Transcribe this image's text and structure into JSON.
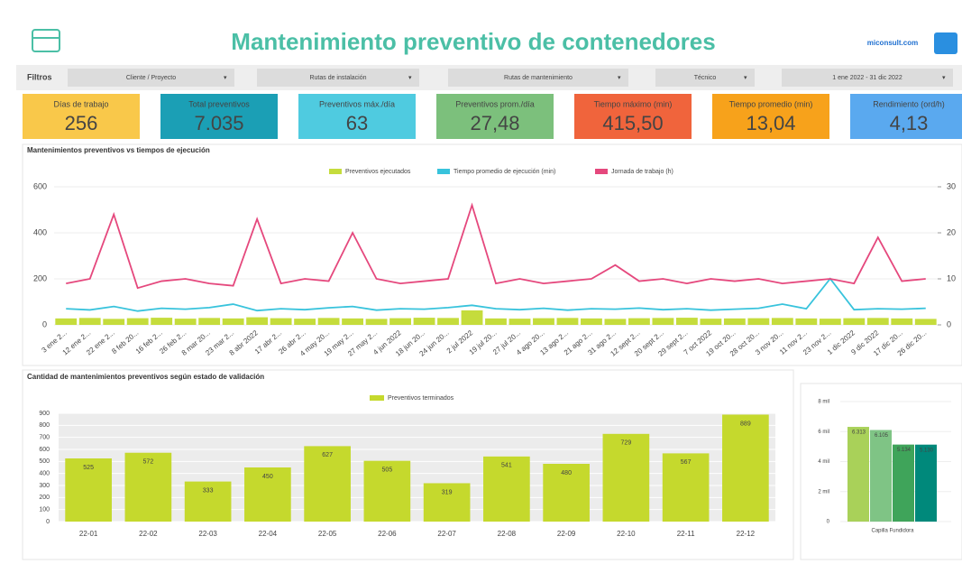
{
  "header": {
    "title": "Mantenimiento preventivo de contenedores",
    "brand": "miconsult.com"
  },
  "filters": {
    "label": "Filtros",
    "items": [
      "Cliente / Proyecto",
      "Rutas de instalación",
      "Rutas de mantenimiento",
      "Técnico",
      "1 ene 2022 - 31 dic 2022"
    ]
  },
  "kpis": [
    {
      "label": "Días de trabajo",
      "value": "256",
      "color": "#f9c84a"
    },
    {
      "label": "Total preventivos",
      "value": "7.035",
      "color": "#1b9fb5"
    },
    {
      "label": "Preventivos máx./día",
      "value": "63",
      "color": "#4fcbe0"
    },
    {
      "label": "Preventivos prom./día",
      "value": "27,48",
      "color": "#7cc07c"
    },
    {
      "label": "Tiempo máximo (min)",
      "value": "415,50",
      "color": "#f0643c"
    },
    {
      "label": "Tiempo promedio (min)",
      "value": "13,04",
      "color": "#f7a21b"
    },
    {
      "label": "Rendimiento (ord/h)",
      "value": "4,13",
      "color": "#5aa9ef"
    }
  ],
  "timeline_chart": {
    "type": "combo",
    "title": "Mantenimientos preventivos vs tiempos de ejecución",
    "categories": [
      "3 ene 2...",
      "12 ene 2...",
      "22 ene 2...",
      "8 feb 20...",
      "16 feb 2...",
      "26 feb 2...",
      "8 mar 20...",
      "23 mar 2...",
      "8 abr 2022",
      "17 abr 2...",
      "26 abr 2...",
      "4 may 20...",
      "19 may 2...",
      "27 may 2...",
      "4 jun 2022",
      "18 jun 20...",
      "24 jun 20...",
      "2 jul 2022",
      "19 jul 20...",
      "27 jul 20...",
      "4 ago 20...",
      "13 ago 2...",
      "21 ago 2...",
      "31 ago 2...",
      "12 sept 2...",
      "20 sept 2...",
      "29 sept 2...",
      "7 oct 2022",
      "19 oct 20...",
      "28 oct 20...",
      "3 nov 20...",
      "11 nov 2...",
      "23 nov 2...",
      "1 dic 2022",
      "9 dic 2022",
      "17 dic 20...",
      "26 dic 20..."
    ],
    "series": [
      {
        "name": "Preventivos ejecutados",
        "type": "bar",
        "color": "#c5dc3c",
        "values": [
          28,
          30,
          26,
          29,
          31,
          27,
          30,
          28,
          33,
          29,
          27,
          30,
          28,
          26,
          29,
          31,
          30,
          63,
          28,
          27,
          29,
          30,
          28,
          26,
          29,
          30,
          31,
          27,
          28,
          29,
          30,
          28,
          27,
          29,
          30,
          28,
          26
        ]
      },
      {
        "name": "Tiempo promedio de ejecución (min)",
        "type": "line",
        "color": "#38c3dc",
        "values": [
          70,
          65,
          80,
          60,
          72,
          68,
          75,
          90,
          62,
          70,
          66,
          74,
          80,
          64,
          70,
          68,
          75,
          85,
          70,
          66,
          72,
          64,
          70,
          68,
          73,
          66,
          70,
          64,
          68,
          72,
          90,
          70,
          200.57,
          66,
          70,
          68,
          72
        ]
      },
      {
        "name": "Jornada de trabajo (h)",
        "type": "line",
        "axis": "y2",
        "color": "#e5487d",
        "values": [
          9,
          10,
          24,
          8,
          9.5,
          10,
          9,
          8.5,
          23,
          9,
          10,
          9.5,
          20,
          10,
          9,
          9.5,
          10,
          26,
          9,
          10,
          9,
          9.5,
          10,
          13,
          9.5,
          10,
          9,
          10,
          9.5,
          10,
          9,
          9.5,
          10,
          9,
          19,
          9.5,
          10
        ]
      }
    ],
    "ylim": [
      0,
      600
    ],
    "yticks": [
      0,
      200,
      400,
      600
    ],
    "y2lim": [
      0,
      30
    ],
    "y2ticks": [
      0,
      10,
      20,
      30
    ]
  },
  "monthly_chart": {
    "type": "bar",
    "title": "Cantidad de mantenimientos preventivos según estado de validación",
    "legend": "Preventivos terminados",
    "color": "#c5d92d",
    "categories": [
      "22-01",
      "22-02",
      "22-03",
      "22-04",
      "22-05",
      "22-06",
      "22-07",
      "22-08",
      "22-09",
      "22-10",
      "22-11",
      "22-12"
    ],
    "values": [
      525,
      572,
      333,
      450,
      627,
      505,
      319,
      541,
      480,
      729,
      567,
      889
    ],
    "ylim": [
      0,
      900
    ],
    "yticks": [
      0,
      100,
      200,
      300,
      400,
      500,
      600,
      700,
      800,
      900
    ]
  },
  "site_chart": {
    "type": "grouped-bar",
    "categories": [
      "Capilla Fundidora"
    ],
    "series": [
      {
        "color": "#a9d159",
        "values": [
          6313
        ],
        "value_labels": [
          "6.313"
        ]
      },
      {
        "color": "#7fc485",
        "values": [
          6105
        ],
        "value_labels": [
          "6.105"
        ]
      },
      {
        "color": "#3fa45a",
        "values": [
          5134
        ],
        "value_labels": [
          "5.134"
        ]
      },
      {
        "color": "#00897b",
        "values": [
          5130
        ],
        "value_labels": [
          "5.130"
        ]
      }
    ],
    "ylim": [
      0,
      8000
    ],
    "yticks": [
      0,
      {
        "value": 2000,
        "label": "2 mil"
      },
      {
        "value": 4000,
        "label": "4 mil"
      },
      {
        "value": 6000,
        "label": "6 mil"
      },
      {
        "value": 8000,
        "label": "8 mil"
      }
    ]
  }
}
